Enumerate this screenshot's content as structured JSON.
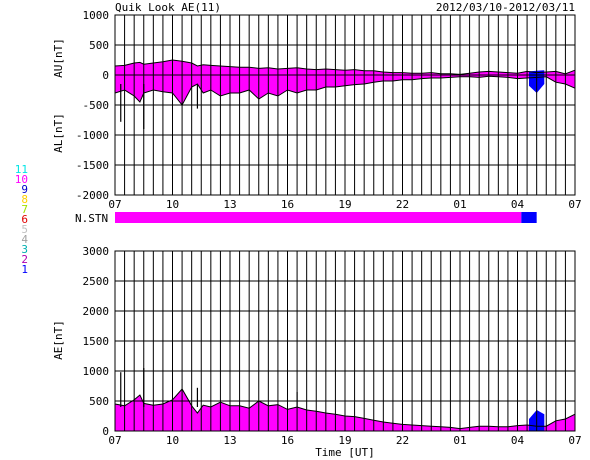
{
  "header": {
    "title": "Quik Look AE(11)",
    "date_range": "2012/03/10-2012/03/11"
  },
  "colors": {
    "background": "#ffffff",
    "grid": "#000000",
    "fill_main": "#ff00ff",
    "fill_recent": "#0000ff",
    "line": "#000000"
  },
  "station_legend": [
    {
      "label": "11",
      "color": "#00e5e5"
    },
    {
      "label": "10",
      "color": "#ff00ff"
    },
    {
      "label": "9",
      "color": "#0000cc"
    },
    {
      "label": "8",
      "color": "#ffd000"
    },
    {
      "label": "7",
      "color": "#a0e000"
    },
    {
      "label": "6",
      "color": "#e00000"
    },
    {
      "label": "5",
      "color": "#c0c0c0"
    },
    {
      "label": "4",
      "color": "#a0a0a0"
    },
    {
      "label": "3",
      "color": "#00b0b0"
    },
    {
      "label": "2",
      "color": "#b000b0"
    },
    {
      "label": "1",
      "color": "#0000ff"
    }
  ],
  "chart_data": [
    {
      "type": "area",
      "id": "au-al",
      "ylabel_top": "AU[nT]",
      "ylabel_bottom": "AL[nT]",
      "xlabel": "",
      "ylim": [
        -2000,
        1000
      ],
      "yticks": [
        "1000",
        "500",
        "0",
        "-500",
        "-1000",
        "-1500",
        "-2000"
      ],
      "xticks": [
        "07",
        "10",
        "13",
        "16",
        "19",
        "22",
        "01",
        "04",
        "07"
      ],
      "x_hours": [
        0,
        0.5,
        1,
        1.3,
        1.5,
        2,
        2.5,
        3,
        3.5,
        4,
        4.3,
        4.6,
        5,
        5.5,
        6,
        6.5,
        7,
        7.5,
        8,
        8.5,
        9,
        9.5,
        10,
        10.5,
        11,
        11.5,
        12,
        12.5,
        13,
        13.5,
        14,
        14.5,
        15,
        15.5,
        16,
        16.5,
        17,
        17.5,
        18,
        18.5,
        19,
        19.5,
        20,
        20.5,
        21,
        21.5,
        22,
        22.5,
        23,
        23.5,
        24
      ],
      "au": [
        150,
        160,
        200,
        210,
        180,
        200,
        220,
        250,
        230,
        200,
        150,
        170,
        160,
        150,
        140,
        130,
        130,
        110,
        120,
        100,
        110,
        120,
        100,
        90,
        100,
        90,
        80,
        90,
        70,
        70,
        50,
        40,
        40,
        30,
        30,
        40,
        20,
        20,
        10,
        30,
        50,
        60,
        50,
        40,
        30,
        60,
        40,
        50,
        60,
        20,
        80
      ],
      "al": [
        -300,
        -250,
        -350,
        -450,
        -300,
        -250,
        -280,
        -300,
        -500,
        -200,
        -150,
        -300,
        -250,
        -350,
        -300,
        -300,
        -250,
        -400,
        -300,
        -350,
        -250,
        -300,
        -250,
        -250,
        -200,
        -200,
        -180,
        -160,
        -150,
        -120,
        -100,
        -100,
        -80,
        -80,
        -60,
        -50,
        -50,
        -40,
        -30,
        -30,
        -40,
        -20,
        -30,
        -40,
        -60,
        -50,
        -40,
        -30,
        -120,
        -150,
        -220
      ],
      "spikes": [
        [
          0.3,
          -780
        ],
        [
          1.5,
          -900
        ],
        [
          4.3,
          -560
        ]
      ],
      "recent_start_hour": 21.6,
      "recent_end_hour": 22.4,
      "recent_au": [
        60,
        70,
        80
      ],
      "recent_al": [
        -180,
        -300,
        -150
      ]
    },
    {
      "type": "area",
      "id": "ae",
      "ylabel": "AE[nT]",
      "xlabel": "Time [UT]",
      "ylim": [
        0,
        3000
      ],
      "yticks": [
        "3000",
        "2500",
        "2000",
        "1500",
        "1000",
        "500",
        "0"
      ],
      "xticks": [
        "07",
        "10",
        "13",
        "16",
        "19",
        "22",
        "01",
        "04",
        "07"
      ],
      "x_hours": [
        0,
        0.5,
        1,
        1.3,
        1.5,
        2,
        2.5,
        3,
        3.5,
        4,
        4.3,
        4.6,
        5,
        5.5,
        6,
        6.5,
        7,
        7.5,
        8,
        8.5,
        9,
        9.5,
        10,
        10.5,
        11,
        11.5,
        12,
        12.5,
        13,
        13.5,
        14,
        14.5,
        15,
        15.5,
        16,
        16.5,
        17,
        17.5,
        18,
        18.5,
        19,
        19.5,
        20,
        20.5,
        21,
        21.5,
        22,
        22.5,
        23,
        23.5,
        24
      ],
      "ae": [
        450,
        420,
        520,
        600,
        460,
        430,
        450,
        520,
        700,
        420,
        300,
        430,
        400,
        480,
        420,
        420,
        380,
        500,
        420,
        440,
        360,
        400,
        350,
        330,
        300,
        280,
        250,
        240,
        210,
        180,
        150,
        130,
        110,
        100,
        90,
        80,
        70,
        60,
        40,
        60,
        80,
        80,
        70,
        70,
        90,
        100,
        80,
        80,
        170,
        200,
        280
      ],
      "spikes": [
        [
          0.3,
          980
        ],
        [
          1.5,
          1050
        ],
        [
          4.3,
          720
        ],
        [
          9.5,
          650
        ]
      ],
      "recent_start_hour": 21.6,
      "recent_end_hour": 22.4,
      "recent_ae": [
        200,
        350,
        280
      ]
    }
  ],
  "nstn": {
    "label": "N.STN",
    "main_end_hour": 21.2,
    "recent_end_hour": 22.0
  }
}
